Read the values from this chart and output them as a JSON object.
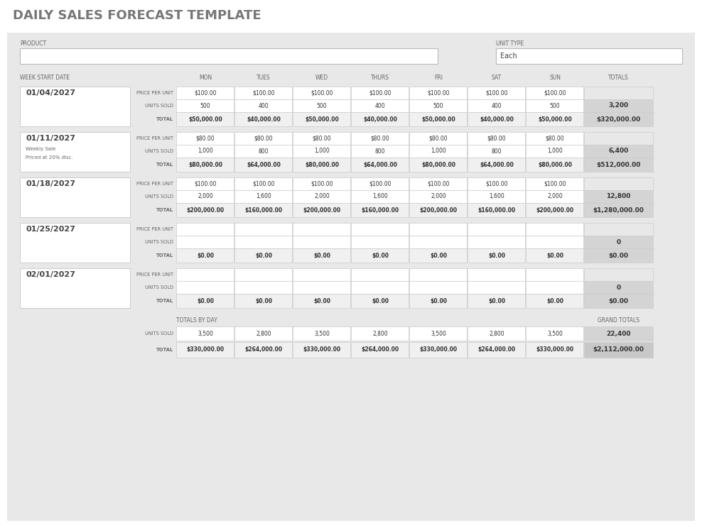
{
  "title": "DAILY SALES FORECAST TEMPLATE",
  "bg_color": "#e8e8e8",
  "panel_bg": "#e8e8e8",
  "white": "#ffffff",
  "cell_gray": "#d4d4d4",
  "total_row_bg": "#eeeeee",
  "grand_total_bg": "#c8c8c8",
  "days": [
    "MON",
    "TUES",
    "WED",
    "THURS",
    "FRI",
    "SAT",
    "SUN",
    "TOTALS"
  ],
  "weeks": [
    {
      "date": "01/04/2027",
      "notes": [],
      "price_per_unit": [
        "$100.00",
        "$100.00",
        "$100.00",
        "$100.00",
        "$100.00",
        "$100.00",
        "$100.00",
        ""
      ],
      "units_sold": [
        "500",
        "400",
        "500",
        "400",
        "500",
        "400",
        "500",
        "3,200"
      ],
      "total": [
        "$50,000.00",
        "$40,000.00",
        "$50,000.00",
        "$40,000.00",
        "$50,000.00",
        "$40,000.00",
        "$50,000.00",
        "$320,000.00"
      ]
    },
    {
      "date": "01/11/2027",
      "notes": [
        "Weekly Sale",
        "Priced at 20% disc."
      ],
      "price_per_unit": [
        "$80.00",
        "$80.00",
        "$80.00",
        "$80.00",
        "$80.00",
        "$80.00",
        "$80.00",
        ""
      ],
      "units_sold": [
        "1,000",
        "800",
        "1,000",
        "800",
        "1,000",
        "800",
        "1,000",
        "6,400"
      ],
      "total": [
        "$80,000.00",
        "$64,000.00",
        "$80,000.00",
        "$64,000.00",
        "$80,000.00",
        "$64,000.00",
        "$80,000.00",
        "$512,000.00"
      ]
    },
    {
      "date": "01/18/2027",
      "notes": [],
      "price_per_unit": [
        "$100.00",
        "$100.00",
        "$100.00",
        "$100.00",
        "$100.00",
        "$100.00",
        "$100.00",
        ""
      ],
      "units_sold": [
        "2,000",
        "1,600",
        "2,000",
        "1,600",
        "2,000",
        "1,600",
        "2,000",
        "12,800"
      ],
      "total": [
        "$200,000.00",
        "$160,000.00",
        "$200,000.00",
        "$160,000.00",
        "$200,000.00",
        "$160,000.00",
        "$200,000.00",
        "$1,280,000.00"
      ]
    },
    {
      "date": "01/25/2027",
      "notes": [],
      "price_per_unit": [
        "",
        "",
        "",
        "",
        "",
        "",
        "",
        ""
      ],
      "units_sold": [
        "",
        "",
        "",
        "",
        "",
        "",
        "",
        "0"
      ],
      "total": [
        "$0.00",
        "$0.00",
        "$0.00",
        "$0.00",
        "$0.00",
        "$0.00",
        "$0.00",
        "$0.00"
      ]
    },
    {
      "date": "02/01/2027",
      "notes": [],
      "price_per_unit": [
        "",
        "",
        "",
        "",
        "",
        "",
        "",
        ""
      ],
      "units_sold": [
        "",
        "",
        "",
        "",
        "",
        "",
        "",
        "0"
      ],
      "total": [
        "$0.00",
        "$0.00",
        "$0.00",
        "$0.00",
        "$0.00",
        "$0.00",
        "$0.00",
        "$0.00"
      ]
    }
  ],
  "totals_by_day_units": [
    "3,500",
    "2,800",
    "3,500",
    "2,800",
    "3,500",
    "2,800",
    "3,500",
    "22,400"
  ],
  "totals_by_day_total": [
    "$330,000.00",
    "$264,000.00",
    "$330,000.00",
    "$264,000.00",
    "$330,000.00",
    "$264,000.00",
    "$330,000.00",
    "$2,112,000.00"
  ]
}
